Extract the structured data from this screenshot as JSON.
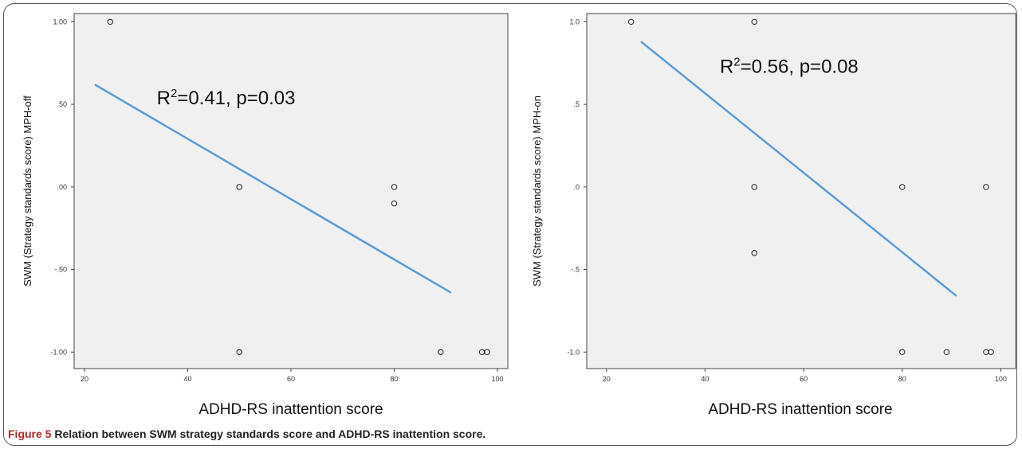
{
  "colors": {
    "plot_background": "#f0f0f0",
    "regression_line": "#5b9bd5",
    "point_stroke": "#333333",
    "frame": "#555555"
  },
  "caption": {
    "label": "Figure 5",
    "text": "Relation between SWM strategy standards score and ADHD-RS inattention score."
  },
  "chart_data": [
    {
      "type": "scatter",
      "xlabel": "ADHD-RS inattention score",
      "ylabel": "SWM (Strategy standards score)  MPH-off",
      "xlim": [
        18,
        102
      ],
      "ylim": [
        -1.1,
        1.05
      ],
      "xticks": [
        20,
        40,
        60,
        80,
        100
      ],
      "xtick_labels": [
        "20",
        "40",
        "60",
        "80",
        "100"
      ],
      "yticks": [
        1.0,
        0.5,
        0.0,
        -0.5,
        -1.0
      ],
      "ytick_labels": [
        "1.00",
        ".50",
        ".00",
        "-.50",
        "-1.00"
      ],
      "annotation": {
        "prefix": "R",
        "sup": "2",
        "rest": "=0.41, p=0.03",
        "x": 34,
        "y": 0.5
      },
      "points": [
        {
          "x": 25,
          "y": 1.0
        },
        {
          "x": 50,
          "y": 0.0
        },
        {
          "x": 50,
          "y": -1.0
        },
        {
          "x": 80,
          "y": 0.0
        },
        {
          "x": 80,
          "y": -0.1
        },
        {
          "x": 89,
          "y": -1.0
        },
        {
          "x": 97,
          "y": -1.0
        },
        {
          "x": 98,
          "y": -1.0
        }
      ],
      "fit_line": {
        "x": [
          22,
          91
        ],
        "y": [
          0.62,
          -0.64
        ]
      }
    },
    {
      "type": "scatter",
      "xlabel": "ADHD-RS inattention score",
      "ylabel": "SWM (Strategy standards score) MPH-on",
      "xlim": [
        16,
        103
      ],
      "ylim": [
        -1.1,
        1.05
      ],
      "xticks": [
        20,
        40,
        60,
        80,
        100
      ],
      "xtick_labels": [
        "20",
        "40",
        "60",
        "80",
        "100"
      ],
      "yticks": [
        1.0,
        0.5,
        0.0,
        -0.5,
        -1.0
      ],
      "ytick_labels": [
        "1.0",
        ".5",
        ".0",
        "-.5",
        "-1.0"
      ],
      "annotation": {
        "prefix": "R",
        "sup": "2",
        "rest": "=0.56, p=0.08",
        "x": 43,
        "y": 0.69
      },
      "points": [
        {
          "x": 25,
          "y": 1.0
        },
        {
          "x": 50,
          "y": 1.0
        },
        {
          "x": 50,
          "y": 0.0
        },
        {
          "x": 50,
          "y": -0.4
        },
        {
          "x": 80,
          "y": 0.0
        },
        {
          "x": 80,
          "y": -1.0
        },
        {
          "x": 89,
          "y": -1.0
        },
        {
          "x": 97,
          "y": 0.0
        },
        {
          "x": 97,
          "y": -1.0
        },
        {
          "x": 98,
          "y": -1.0
        }
      ],
      "fit_line": {
        "x": [
          27,
          91
        ],
        "y": [
          0.88,
          -0.66
        ]
      }
    }
  ]
}
